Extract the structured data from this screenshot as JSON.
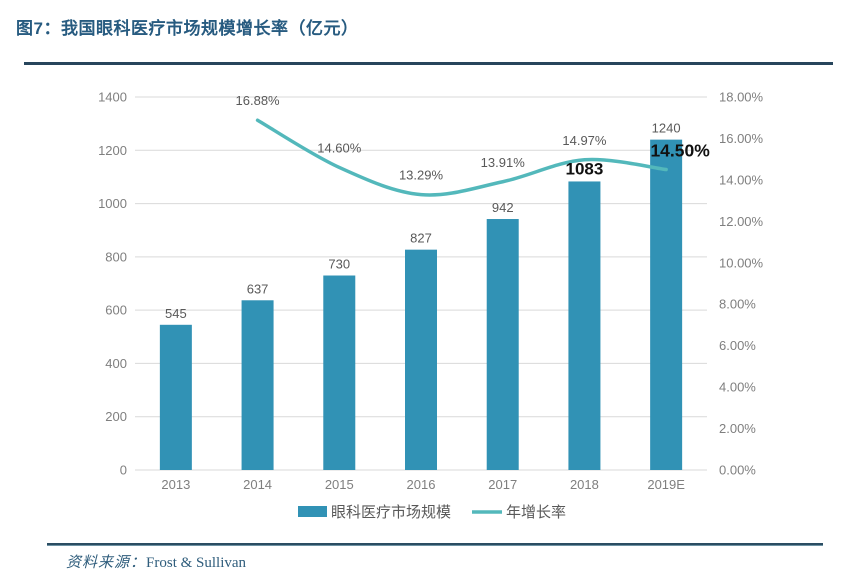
{
  "figure": {
    "title": "图7：我国眼科医疗市场规模增长率（亿元）",
    "source_label": "资料来源：",
    "source_value": "Frost & Sullivan"
  },
  "chart_data": {
    "type": "bar+line",
    "title": "我国眼科医疗市场规模增长率（亿元）",
    "categories": [
      "2013",
      "2014",
      "2015",
      "2016",
      "2017",
      "2018",
      "2019E"
    ],
    "series": [
      {
        "name": "眼科医疗市场规模",
        "type": "bar",
        "axis": "left",
        "color": "#3192B5",
        "values": [
          545,
          637,
          730,
          827,
          942,
          1083,
          1240
        ],
        "labels": [
          "545",
          "637",
          "730",
          "827",
          "942",
          "1083",
          "1240"
        ]
      },
      {
        "name": "年增长率",
        "type": "line",
        "axis": "right",
        "color": "#53B8BB",
        "values": [
          null,
          16.88,
          14.6,
          13.29,
          13.91,
          14.97,
          14.5
        ],
        "labels": [
          null,
          "16.88%",
          "14.60%",
          "13.29%",
          "13.91%",
          "14.97%",
          "14.50%"
        ]
      }
    ],
    "left_axis": {
      "min": 0,
      "max": 1400,
      "step": 200,
      "tick_labels": [
        "0",
        "200",
        "400",
        "600",
        "800",
        "1000",
        "1200",
        "1400"
      ]
    },
    "right_axis": {
      "min": 0,
      "max": 18,
      "step": 2,
      "tick_labels": [
        "0.00%",
        "2.00%",
        "4.00%",
        "6.00%",
        "8.00%",
        "10.00%",
        "12.00%",
        "14.00%",
        "16.00%",
        "18.00%"
      ]
    },
    "emphasis": {
      "bar_indices": [
        5
      ],
      "line_indices": [
        6
      ]
    },
    "grid": true,
    "legend_position": "bottom",
    "colors": {
      "grid": "#D9D9D9",
      "tick_text": "#7F7F7F",
      "data_label": "#595959",
      "emphasis_label": "#111111",
      "legend_text": "#595959"
    }
  }
}
